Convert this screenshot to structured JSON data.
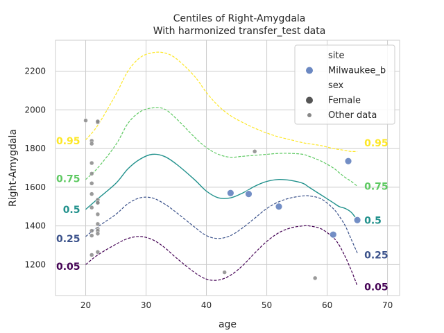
{
  "chart_data": {
    "type": "scatter",
    "title": "Centiles of Right-Amygdala",
    "subtitle": "With harmonized transfer_test data",
    "xlabel": "age",
    "ylabel": "Right-Amygdala",
    "xlim": [
      15,
      72
    ],
    "ylim": [
      1040,
      2360
    ],
    "xticks": [
      20,
      30,
      40,
      50,
      60,
      70
    ],
    "yticks": [
      1200,
      1400,
      1600,
      1800,
      2000,
      2200
    ],
    "grid": true,
    "legend": {
      "placement": "top-right",
      "entries": [
        {
          "kind": "header",
          "text": "site"
        },
        {
          "kind": "marker",
          "text": "Milwaukee_b",
          "color": "#6b88c2",
          "size": "large"
        },
        {
          "kind": "header",
          "text": "sex"
        },
        {
          "kind": "marker",
          "text": "Female",
          "color": "#555555",
          "size": "large"
        },
        {
          "kind": "marker",
          "text": "Other data",
          "color": "#888888",
          "size": "small"
        }
      ]
    },
    "centiles": [
      {
        "label": "0.05",
        "color": "#440154",
        "dashed": true,
        "x": [
          20,
          22,
          25,
          27,
          29,
          31,
          33,
          35,
          38,
          40,
          42,
          44,
          46,
          48,
          50,
          52,
          54,
          56,
          57,
          59,
          61,
          62,
          63,
          64,
          65
        ],
        "y": [
          1200,
          1250,
          1305,
          1335,
          1345,
          1330,
          1290,
          1235,
          1160,
          1125,
          1120,
          1145,
          1195,
          1260,
          1320,
          1365,
          1390,
          1400,
          1400,
          1385,
          1340,
          1300,
          1240,
          1170,
          1090
        ],
        "label_left_y": 1190,
        "label_right_y": 1085
      },
      {
        "label": "0.25",
        "color": "#3b528b",
        "dashed": true,
        "x": [
          20,
          22,
          25,
          27,
          29,
          31,
          33,
          35,
          38,
          40,
          42,
          44,
          46,
          48,
          50,
          52,
          54,
          56,
          57,
          59,
          61,
          62,
          63,
          64,
          65
        ],
        "y": [
          1345,
          1395,
          1460,
          1515,
          1545,
          1545,
          1515,
          1470,
          1395,
          1350,
          1335,
          1350,
          1390,
          1440,
          1490,
          1525,
          1545,
          1555,
          1555,
          1540,
          1490,
          1450,
          1400,
          1330,
          1260
        ],
        "label_left_y": 1335,
        "label_right_y": 1250
      },
      {
        "label": "0.5",
        "color": "#21918c",
        "dashed": false,
        "x": [
          20,
          22,
          25,
          27,
          29,
          31,
          33,
          35,
          38,
          40,
          42,
          44,
          46,
          48,
          50,
          52,
          54,
          56,
          57,
          59,
          61,
          62,
          63,
          64,
          65
        ],
        "y": [
          1485,
          1540,
          1620,
          1695,
          1745,
          1770,
          1760,
          1720,
          1640,
          1580,
          1545,
          1545,
          1570,
          1605,
          1630,
          1640,
          1635,
          1620,
          1600,
          1560,
          1520,
          1500,
          1490,
          1470,
          1430
        ],
        "label_left_y": 1485,
        "label_right_y": 1430
      },
      {
        "label": "0.75",
        "color": "#5ec962",
        "dashed": true,
        "x": [
          20,
          22,
          25,
          27,
          29,
          31,
          33,
          35,
          38,
          40,
          42,
          44,
          46,
          48,
          50,
          52,
          54,
          56,
          57,
          59,
          61,
          62,
          63,
          64,
          65
        ],
        "y": [
          1640,
          1700,
          1820,
          1930,
          1990,
          2010,
          2005,
          1955,
          1860,
          1805,
          1770,
          1755,
          1760,
          1765,
          1770,
          1775,
          1775,
          1770,
          1760,
          1735,
          1700,
          1675,
          1650,
          1630,
          1605
        ],
        "label_left_y": 1645,
        "label_right_y": 1605
      },
      {
        "label": "0.95",
        "color": "#fde725",
        "dashed": true,
        "x": [
          20,
          22,
          25,
          27,
          29,
          31,
          33,
          35,
          38,
          40,
          42,
          44,
          46,
          48,
          50,
          52,
          54,
          56,
          57,
          59,
          61,
          62,
          63,
          64,
          65
        ],
        "y": [
          1845,
          1920,
          2080,
          2200,
          2270,
          2295,
          2295,
          2265,
          2175,
          2090,
          2020,
          1970,
          1935,
          1905,
          1880,
          1860,
          1845,
          1830,
          1825,
          1815,
          1800,
          1795,
          1790,
          1785,
          1785
        ],
        "label_left_y": 1840,
        "label_right_y": 1830
      }
    ],
    "milwaukee_points": {
      "name": "Milwaukee_b",
      "color": "#6b88c2",
      "x": [
        44,
        47,
        52,
        61,
        63.5,
        65
      ],
      "y": [
        1570,
        1565,
        1500,
        1355,
        1735,
        1430
      ]
    },
    "other_points": {
      "name": "Other data",
      "color": "#888888",
      "x": [
        20,
        21,
        21,
        21,
        21,
        21,
        21,
        21,
        21,
        21,
        21,
        22,
        22,
        22,
        22,
        22,
        22,
        22,
        22,
        22,
        22,
        22,
        22,
        43,
        48,
        58
      ],
      "y": [
        1945,
        1840,
        1825,
        1725,
        1670,
        1620,
        1565,
        1495,
        1375,
        1350,
        1250,
        1940,
        1935,
        1535,
        1520,
        1460,
        1410,
        1385,
        1375,
        1360,
        1265,
        1940,
        1520,
        1160,
        1785,
        1130
      ]
    }
  }
}
